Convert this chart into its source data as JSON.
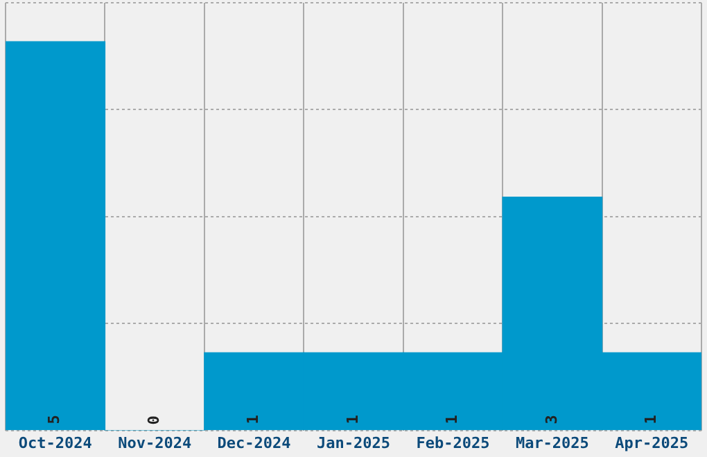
{
  "chart_data": {
    "type": "bar",
    "categories": [
      "Oct-2024",
      "Nov-2024",
      "Dec-2024",
      "Jan-2025",
      "Feb-2025",
      "Mar-2025",
      "Apr-2025"
    ],
    "values": [
      5,
      0,
      1,
      1,
      1,
      3,
      1
    ],
    "color": "#0099cc",
    "relative": false,
    "ylim": [
      0,
      5.5
    ],
    "yticks": [
      {
        "value": 0,
        "label": null
      },
      {
        "value": 1.375,
        "label": null
      },
      {
        "value": 2.75,
        "label": null
      },
      {
        "value": 4.125,
        "label": null
      },
      {
        "value": 5.5,
        "label": null
      }
    ],
    "tick_labels": "x",
    "grid": true,
    "data_labels": true,
    "legend": false
  }
}
